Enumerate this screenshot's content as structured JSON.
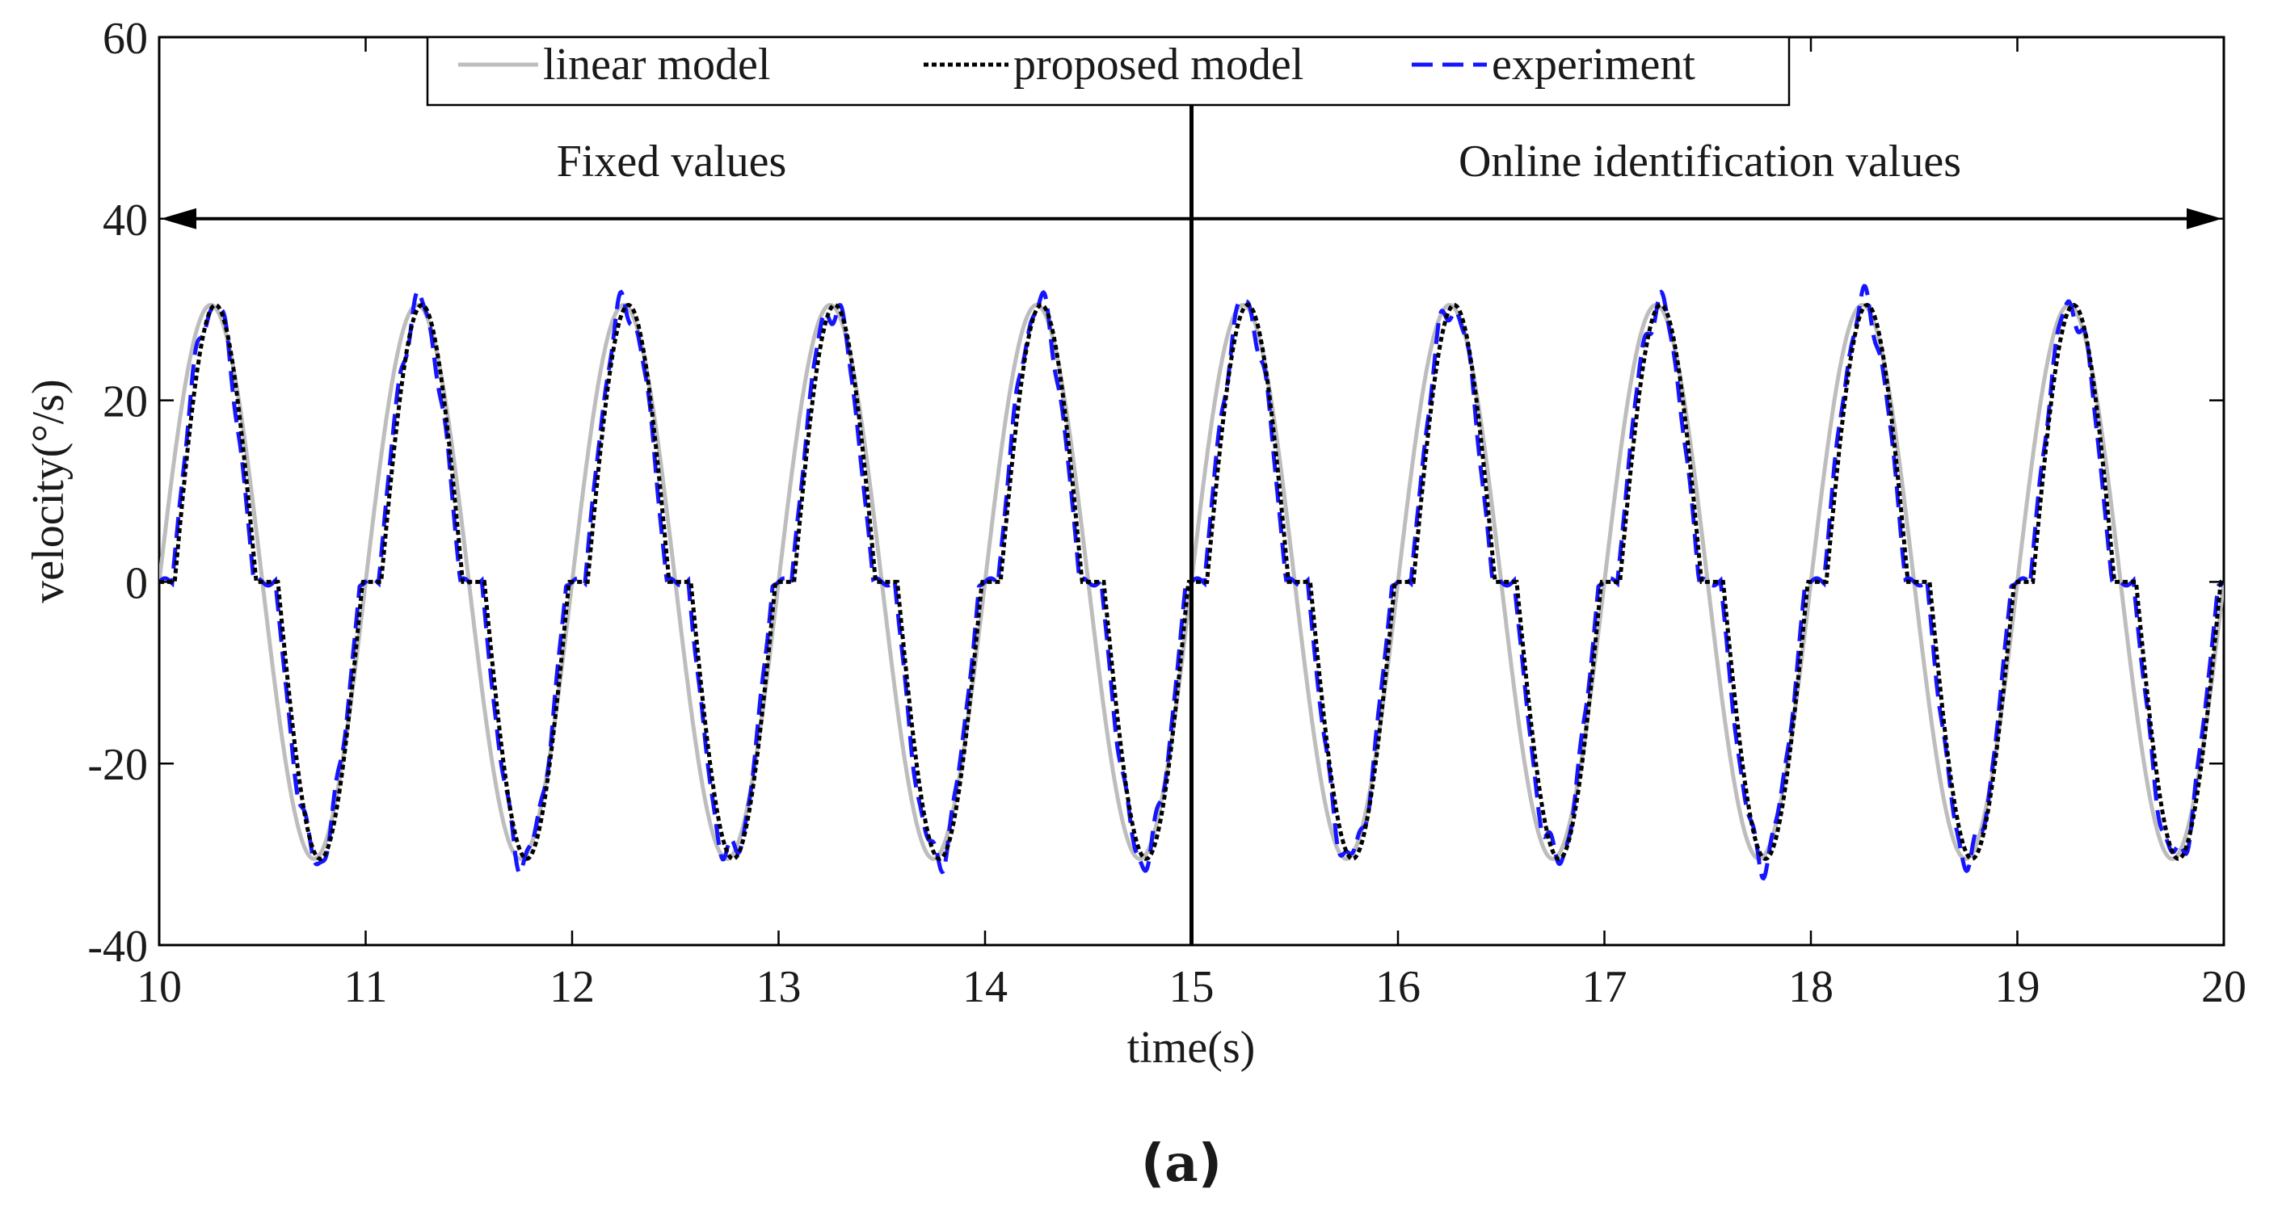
{
  "chart_data": {
    "type": "line",
    "x": {
      "label": "time(s)",
      "range": [
        10,
        20
      ],
      "ticks": [
        10,
        11,
        12,
        13,
        14,
        15,
        16,
        17,
        18,
        19,
        20
      ]
    },
    "y": {
      "label": "velocity(°/s)",
      "range": [
        -40,
        60
      ],
      "ticks": [
        -40,
        -20,
        0,
        20,
        40,
        60
      ]
    },
    "grid": false,
    "legend": {
      "placement": "top-center",
      "entries": [
        "linear model",
        "proposed model",
        "experiment"
      ]
    },
    "signal": {
      "period_s": 1.0,
      "amplitude_deg_s": 30.5,
      "dead_zone_value": 0,
      "description_points_per_period": [
        {
          "t": 0.0,
          "linear": 0,
          "proposed": 0,
          "experiment": -4
        },
        {
          "t": 0.25,
          "linear": 30.5,
          "proposed": 30.5,
          "experiment": 31
        },
        {
          "t": 0.5,
          "linear": 0,
          "proposed": 0,
          "experiment": 0
        },
        {
          "t": 0.75,
          "linear": -30.5,
          "proposed": -30.5,
          "experiment": -31
        },
        {
          "t": 1.0,
          "linear": 0,
          "proposed": 0,
          "experiment": 0
        }
      ]
    },
    "series": [
      {
        "name": "linear model",
        "color": "#b9b9b9",
        "style": "solid"
      },
      {
        "name": "proposed model",
        "color": "#000000",
        "style": "dotted"
      },
      {
        "name": "experiment",
        "color": "#1a1aff",
        "style": "dashed"
      }
    ],
    "annotations": {
      "divider_x": 15,
      "arrow_y": 40,
      "left_region": "Fixed values",
      "right_region": "Online identification values"
    }
  },
  "caption": {
    "open": "(",
    "letter": "a",
    "close": ")"
  }
}
